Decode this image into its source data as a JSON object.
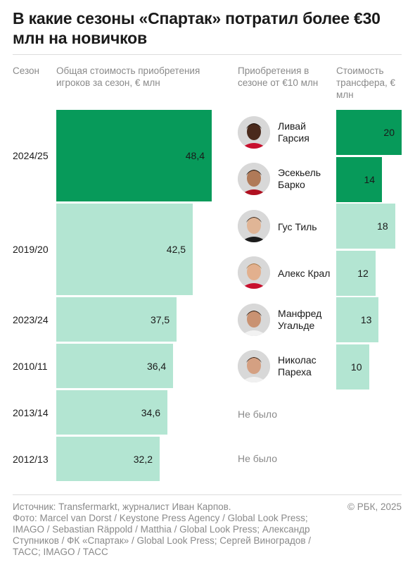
{
  "title": "В какие сезоны «Спартак» потратил более €30 млн на новичков",
  "headers": {
    "season": "Сезон",
    "total": "Общая стоимость приобретения игроков за сезон, € млн",
    "players": "Приобретения в сезоне от €10 млн",
    "fee": "Стоимость трансфера, € млн"
  },
  "colors": {
    "highlight": "#079a5a",
    "regular": "#b3e5d2"
  },
  "chart_data": [
    {
      "type": "bar",
      "orientation": "horizontal",
      "xlabel": "Общая стоимость приобретения игроков за сезон, € млн",
      "categories": [
        "2024/25",
        "2019/20",
        "2023/24",
        "2010/11",
        "2013/14",
        "2012/13"
      ],
      "values": [
        48.4,
        42.5,
        37.5,
        36.4,
        34.6,
        32.2
      ],
      "value_labels": [
        "48,4",
        "42,5",
        "37,5",
        "36,4",
        "34,6",
        "32,2"
      ],
      "highlighted": [
        "2024/25"
      ]
    },
    {
      "type": "bar",
      "orientation": "horizontal",
      "xlabel": "Стоимость трансфера, € млн",
      "categories": [
        "Ливай Гарсия",
        "Эсекьель Барко",
        "Гус Тиль",
        "Алекс Крал",
        "Манфред Угальде",
        "Николас Пареха"
      ],
      "values": [
        20,
        14,
        18,
        12,
        13,
        10
      ],
      "value_labels": [
        "20",
        "14",
        "18",
        "12",
        "13",
        "10"
      ],
      "highlighted": [
        "Ливай Гарсия",
        "Эсекьель Барко"
      ]
    }
  ],
  "players": [
    {
      "name_line1": "Ливай",
      "name_line2": "Гарсия",
      "skin": "#4a2a1c",
      "hair": "#1a0f08",
      "shirt": "#c8102e"
    },
    {
      "name_line1": "Эсекьель",
      "name_line2": "Барко",
      "skin": "#b07a58",
      "hair": "#1a120c",
      "shirt": "#b01020"
    },
    {
      "name_line1": "Гус Тиль",
      "name_line2": "",
      "skin": "#e0b596",
      "hair": "#3a2a1e",
      "shirt": "#1c1c1c"
    },
    {
      "name_line1": "Алекс Крал",
      "name_line2": "",
      "skin": "#e2b08e",
      "hair": "#a97b4a",
      "shirt": "#c8102e"
    },
    {
      "name_line1": "Манфред",
      "name_line2": "Угальде",
      "skin": "#c99272",
      "hair": "#2a1a10",
      "shirt": "#f2f2f2"
    },
    {
      "name_line1": "Николас",
      "name_line2": "Пареха",
      "skin": "#d4a082",
      "hair": "#2e1d12",
      "shirt": "#f0f0f0"
    }
  ],
  "no_purchase_label": "Не было",
  "footer": {
    "source": "Источник: Transfermarkt, журналист Иван Карпов.",
    "photo": "Фото: Marcel van Dorst / Keystone Press Agency / Global Look Press; IMAGO / Sebastian Räppold / Matthia / Global Look Press;  Александр Ступников / ФК «Спартак» / Global Look Press; Сергей Виноградов / ТАСС;  IMAGO / ТАСС",
    "copyright": "© РБК, 2025"
  }
}
